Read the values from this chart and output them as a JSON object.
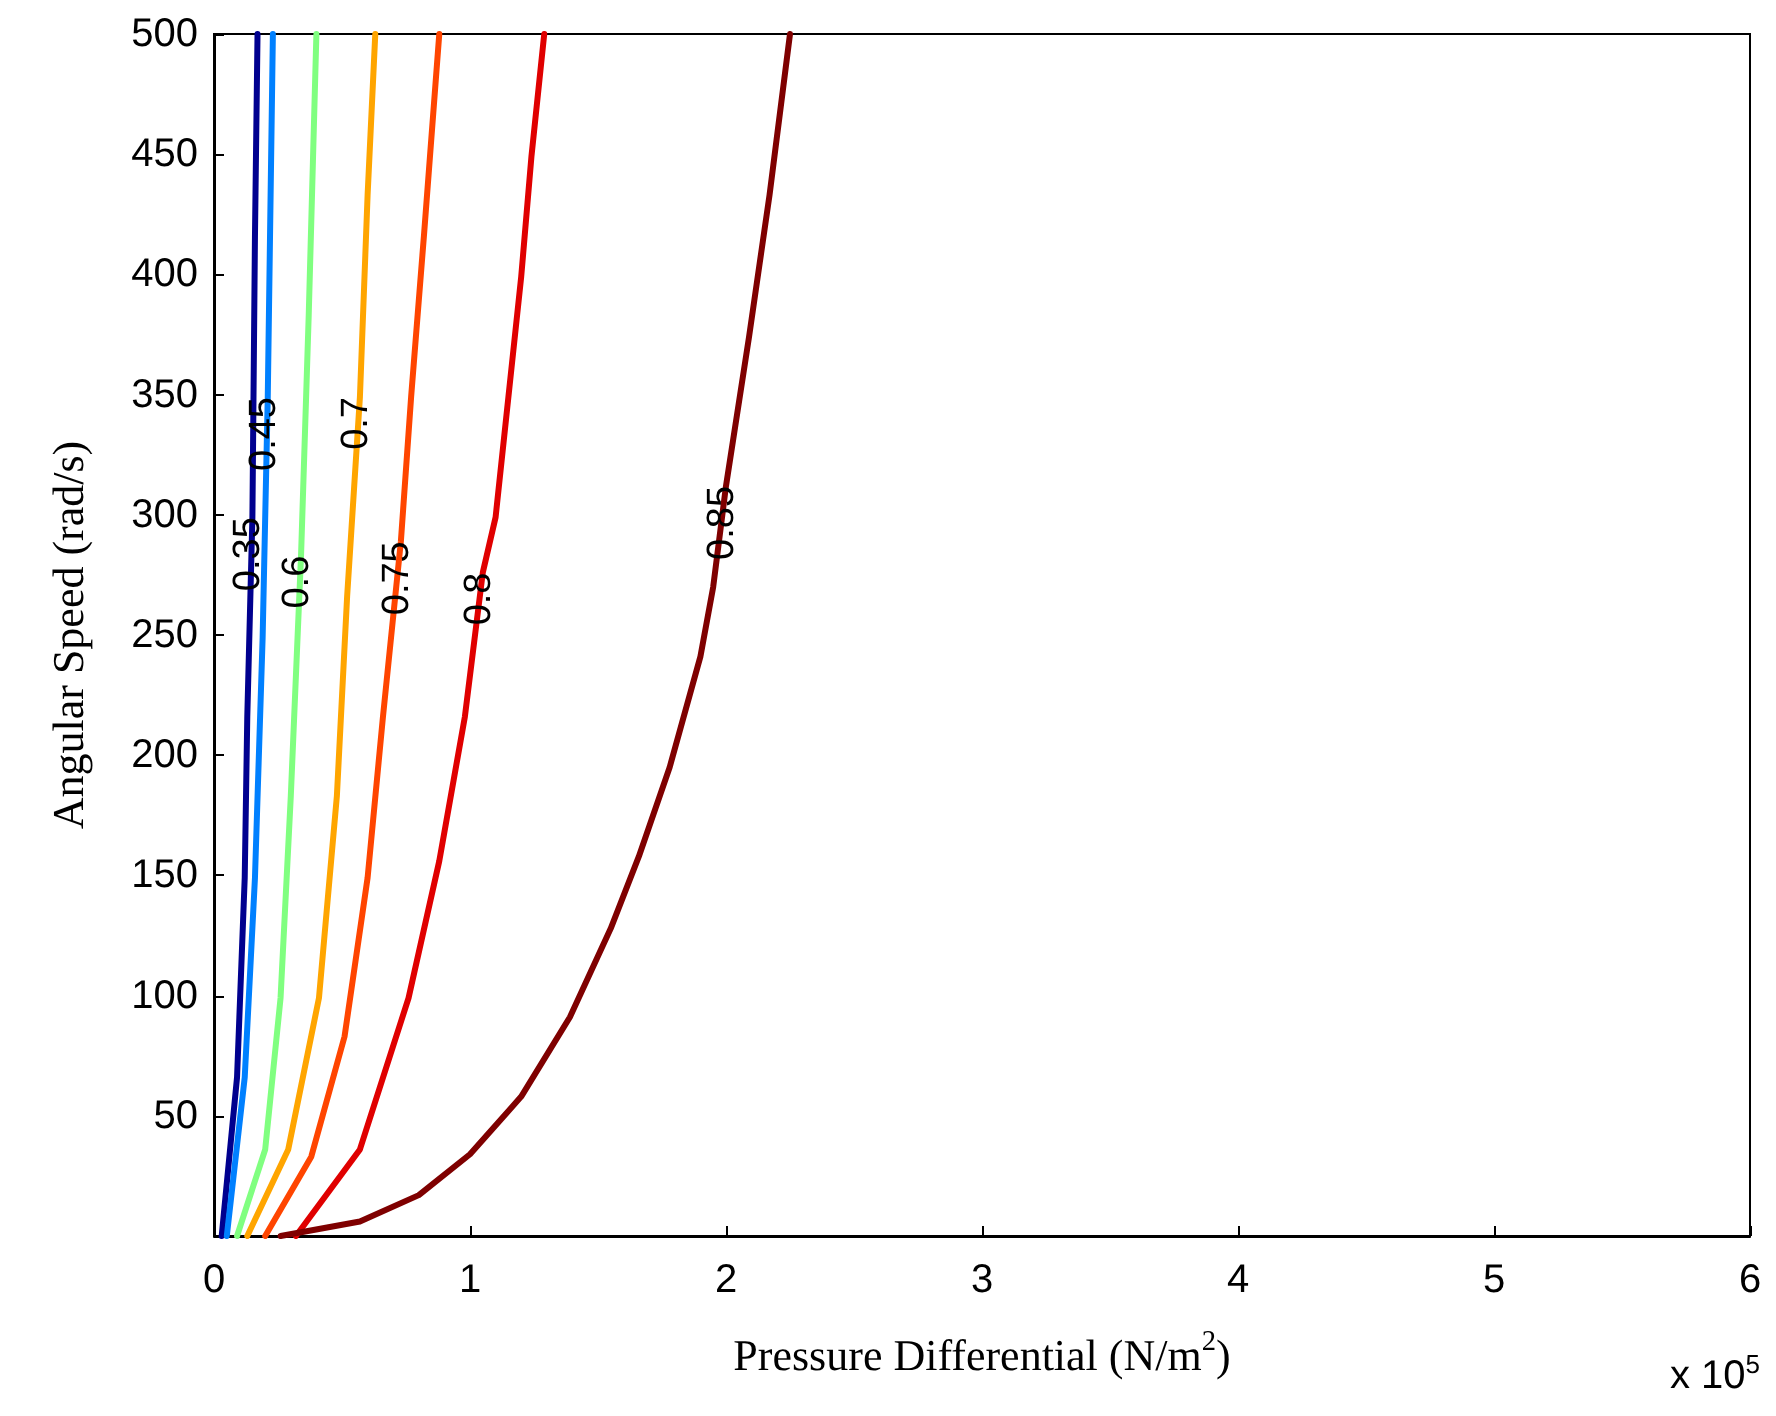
{
  "chart_data": {
    "type": "line",
    "xlabel": "Pressure Differential (N/m$^{2}$)",
    "ylabel": "Angular Speed (rad/s)",
    "annotations": [
      "x 10$^{5}$"
    ],
    "xlim": [
      0,
      6
    ],
    "xticks": [
      0,
      1,
      2,
      3,
      4,
      5,
      6
    ],
    "ylim": [
      0,
      500
    ],
    "yticks": [
      50,
      100,
      150,
      200,
      250,
      300,
      350,
      400,
      450,
      500
    ],
    "grid": false,
    "legend": false,
    "marker": "none",
    "line_style": "solid",
    "series": [
      {
        "name": "0.35",
        "color": "#00008f",
        "x": [
          0.03,
          0.09,
          0.12,
          0.13,
          0.15,
          0.16,
          0.17
        ],
        "values": [
          0,
          66,
          149,
          216,
          299,
          416,
          500
        ]
      },
      {
        "name": "0.45",
        "color": "#0080ff",
        "x": [
          0.05,
          0.12,
          0.16,
          0.19,
          0.21,
          0.23
        ],
        "values": [
          0,
          66,
          149,
          249,
          349,
          500
        ]
      },
      {
        "name": "0.6",
        "color": "#80ff80",
        "x": [
          0.09,
          0.2,
          0.26,
          0.3,
          0.34,
          0.37,
          0.4
        ],
        "values": [
          0,
          36,
          99,
          183,
          283,
          383,
          500
        ]
      },
      {
        "name": "0.7",
        "color": "#ffa500",
        "x": [
          0.13,
          0.29,
          0.41,
          0.48,
          0.52,
          0.57,
          0.6,
          0.63
        ],
        "values": [
          0,
          36,
          99,
          183,
          266,
          349,
          433,
          500
        ]
      },
      {
        "name": "0.75",
        "color": "#ff4500",
        "x": [
          0.2,
          0.38,
          0.51,
          0.6,
          0.66,
          0.73,
          0.77,
          0.82,
          0.88
        ],
        "values": [
          0,
          33,
          83,
          149,
          216,
          289,
          349,
          416,
          500
        ]
      },
      {
        "name": "0.8",
        "color": "#e00000",
        "x": [
          0.32,
          0.57,
          0.76,
          0.88,
          0.98,
          1.05,
          1.1,
          1.15,
          1.2,
          1.24,
          1.29
        ],
        "values": [
          0,
          36,
          99,
          156,
          216,
          276,
          299,
          349,
          399,
          449,
          500
        ]
      },
      {
        "name": "0.85",
        "color": "#7f0000",
        "x": [
          0.26,
          0.57,
          0.8,
          1.0,
          1.2,
          1.39,
          1.55,
          1.66,
          1.78,
          1.9,
          1.95,
          2.0,
          2.09,
          2.17,
          2.25
        ],
        "values": [
          0,
          6,
          17,
          34,
          58,
          91,
          128,
          158,
          195,
          241,
          270,
          312,
          374,
          433,
          500
        ]
      }
    ]
  }
}
